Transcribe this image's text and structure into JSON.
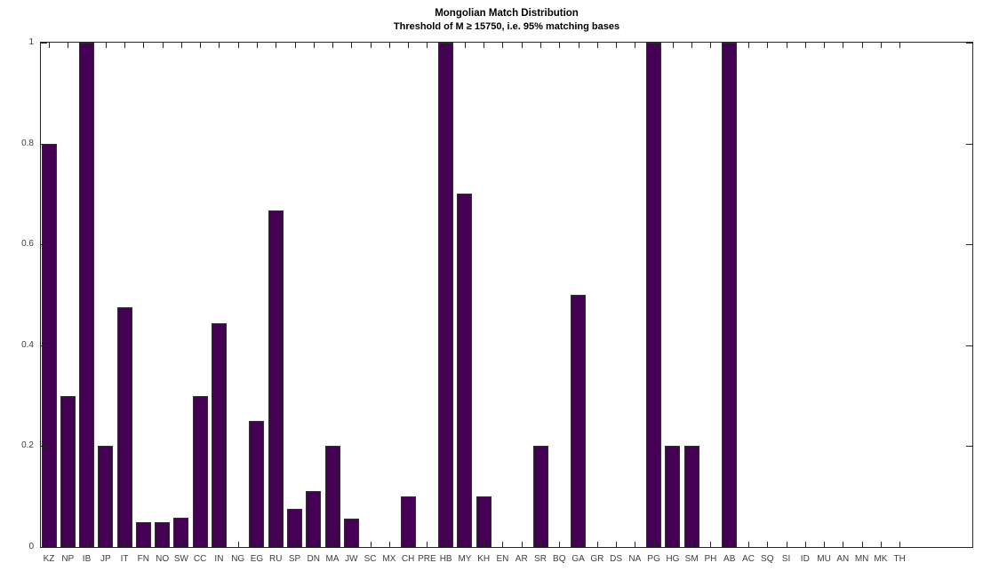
{
  "figure": {
    "background": "#ffffff"
  },
  "chart_data": {
    "type": "bar",
    "title": "Mongolian Match Distribution",
    "subtitle": "Threshold of M ≥ 15750, i.e. 95% matching bases",
    "categories": [
      "KZ",
      "NP",
      "IB",
      "JP",
      "IT",
      "FN",
      "NO",
      "SW",
      "CC",
      "IN",
      "NG",
      "EG",
      "RU",
      "SP",
      "DN",
      "MA",
      "JW",
      "SC",
      "MX",
      "CH",
      "PRE",
      "HB",
      "MY",
      "KH",
      "EN",
      "AR",
      "SR",
      "BQ",
      "GA",
      "GR",
      "DS",
      "NA",
      "PG",
      "HG",
      "SM",
      "PH",
      "AB",
      "AC",
      "SQ",
      "SI",
      "ID",
      "MU",
      "AN",
      "MN",
      "MK",
      "TH"
    ],
    "values": [
      0.8,
      0.3,
      1,
      0.2,
      0.476,
      0.05,
      0.05,
      0.058,
      0.3,
      0.444,
      0,
      0.25,
      0.667,
      0.076,
      0.111,
      0.2,
      0.056,
      0,
      0,
      0.1,
      0,
      1,
      0.7,
      0.1,
      0,
      0,
      0.2,
      0,
      0.5,
      0,
      0,
      0,
      1,
      0.2,
      0.2,
      0,
      1,
      0,
      0,
      0,
      0,
      0,
      0,
      0,
      0,
      0
    ],
    "xlabel": "",
    "ylabel": "",
    "ylim": [
      0,
      1
    ],
    "yticks": [
      0,
      0.2,
      0.4,
      0.6,
      0.8,
      1
    ],
    "ytick_labels": [
      "0",
      "0.2",
      "0.4",
      "0.6",
      "0.8",
      "1"
    ],
    "grid": false,
    "legend": "none",
    "box": true,
    "tick_direction": "in",
    "trailing_empty_slots": 4,
    "bar_color": "#440154",
    "bar_edge_color": "#303030",
    "axis_color": "#262626",
    "tick_label_color": "#3d3d3d",
    "title_color": "#000000"
  }
}
